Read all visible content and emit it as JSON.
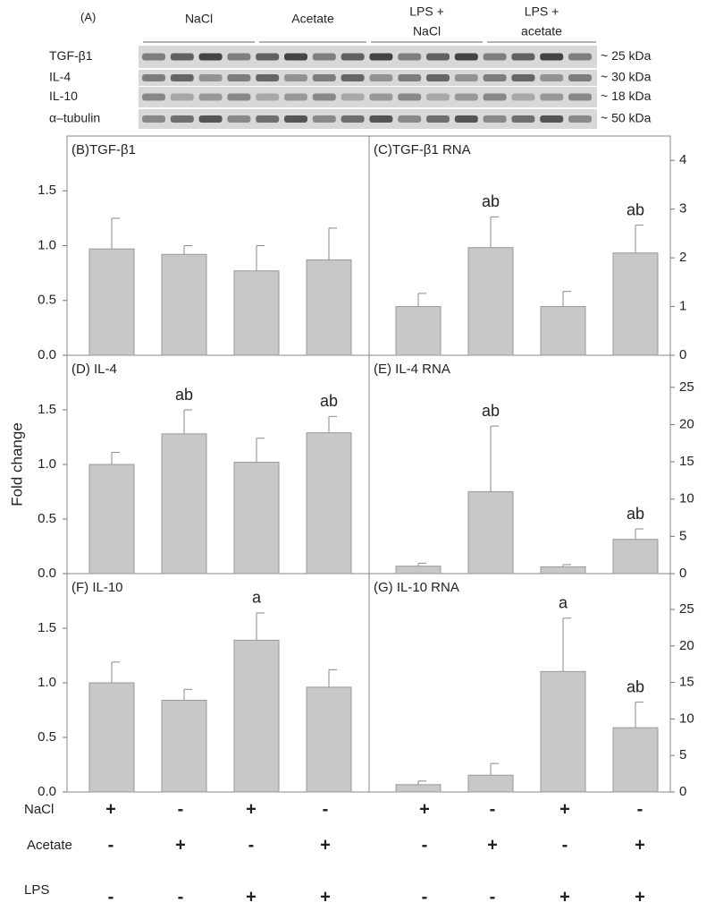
{
  "figure": {
    "panel_label": "(A)",
    "groups": [
      [
        "NaCl"
      ],
      [
        "Acetate"
      ],
      [
        "LPS +",
        "NaCl"
      ],
      [
        "LPS +",
        "acetate"
      ]
    ],
    "rows": [
      "TGF-β1",
      "IL-4",
      "IL-10",
      "α–tubulin"
    ],
    "sizes": [
      "~ 25 kDa",
      "~ 30 kDa",
      "~ 18 kDa",
      "~ 50 kDa"
    ]
  },
  "y_label": "Fold change",
  "chart_data": [
    {
      "type": "bar",
      "title": "(B)TGF-β1",
      "axis_side": "left",
      "color": "#c8c8c8",
      "categories": [
        null,
        null,
        null,
        null
      ],
      "values": [
        0.97,
        0.92,
        0.77,
        0.87
      ],
      "errors": [
        0.28,
        0.08,
        0.23,
        0.29
      ],
      "annotations": [
        null,
        null,
        null,
        null
      ],
      "ylim": [
        0,
        2.0
      ],
      "yticks": [
        {
          "value": 0,
          "label": "0.0"
        },
        0.5,
        {
          "value": 1,
          "label": "1.0"
        },
        1.5
      ]
    },
    {
      "type": "bar",
      "title": "(C)TGF-β1 RNA",
      "axis_side": "right",
      "color": "#c8c8c8",
      "categories": [
        null,
        null,
        null,
        null
      ],
      "values": [
        1.0,
        2.21,
        1.0,
        2.1
      ],
      "errors": [
        0.27,
        0.63,
        0.31,
        0.57
      ],
      "annotations": [
        null,
        "ab",
        null,
        "ab"
      ],
      "ylim": [
        0,
        4.5
      ],
      "yticks": [
        0,
        1,
        2,
        3,
        4
      ]
    },
    {
      "type": "bar",
      "title": "(D) IL-4",
      "axis_side": "left",
      "color": "#c8c8c8",
      "categories": [
        null,
        null,
        null,
        null
      ],
      "values": [
        1.0,
        1.28,
        1.02,
        1.29
      ],
      "errors": [
        0.11,
        0.22,
        0.22,
        0.15
      ],
      "annotations": [
        null,
        "ab",
        null,
        "ab"
      ],
      "ylim": [
        0,
        2.0
      ],
      "yticks": [
        {
          "value": 0,
          "label": "0.0"
        },
        0.5,
        {
          "value": 1,
          "label": "1.0"
        },
        1.5
      ]
    },
    {
      "type": "bar",
      "title": "(E) IL-4 RNA",
      "axis_side": "right",
      "color": "#c8c8c8",
      "categories": [
        null,
        null,
        null,
        null
      ],
      "values": [
        1.0,
        11.0,
        0.9,
        4.6
      ],
      "errors": [
        0.4,
        8.8,
        0.3,
        1.4
      ],
      "annotations": [
        null,
        "ab",
        null,
        "ab"
      ],
      "ylim": [
        0,
        29.3
      ],
      "yticks": [
        0,
        5,
        10,
        15,
        20,
        25
      ]
    },
    {
      "type": "bar",
      "title": "(F) IL-10",
      "axis_side": "left",
      "color": "#c8c8c8",
      "categories": [
        null,
        null,
        null,
        null
      ],
      "values": [
        1.0,
        0.84,
        1.39,
        0.96
      ],
      "errors": [
        0.19,
        0.1,
        0.25,
        0.16
      ],
      "annotations": [
        null,
        null,
        "a",
        null
      ],
      "ylim": [
        0,
        2.0
      ],
      "yticks": [
        {
          "value": 0,
          "label": "0.0"
        },
        0.5,
        {
          "value": 1,
          "label": "1.0"
        },
        1.5
      ]
    },
    {
      "type": "bar",
      "title": "(G) IL-10 RNA",
      "axis_side": "right",
      "color": "#c8c8c8",
      "categories": [
        null,
        null,
        null,
        null
      ],
      "values": [
        1.0,
        2.3,
        16.5,
        8.8
      ],
      "errors": [
        0.5,
        1.6,
        7.3,
        3.5
      ],
      "annotations": [
        null,
        null,
        "a",
        "ab"
      ],
      "ylim": [
        0,
        29.9
      ],
      "yticks": [
        0,
        5,
        10,
        15,
        20,
        25
      ]
    }
  ],
  "treatments": [
    {
      "name": "NaCl",
      "signs": [
        "+",
        "-",
        "+",
        "-",
        "+",
        "-",
        "+",
        "-"
      ]
    },
    {
      "name": "Acetate",
      "signs": [
        "-",
        "+",
        "-",
        "+",
        "-",
        "+",
        "-",
        "+"
      ]
    },
    {
      "name": "LPS",
      "signs": [
        "-",
        "-",
        "+",
        "+",
        "-",
        "-",
        "+",
        "+"
      ]
    }
  ]
}
